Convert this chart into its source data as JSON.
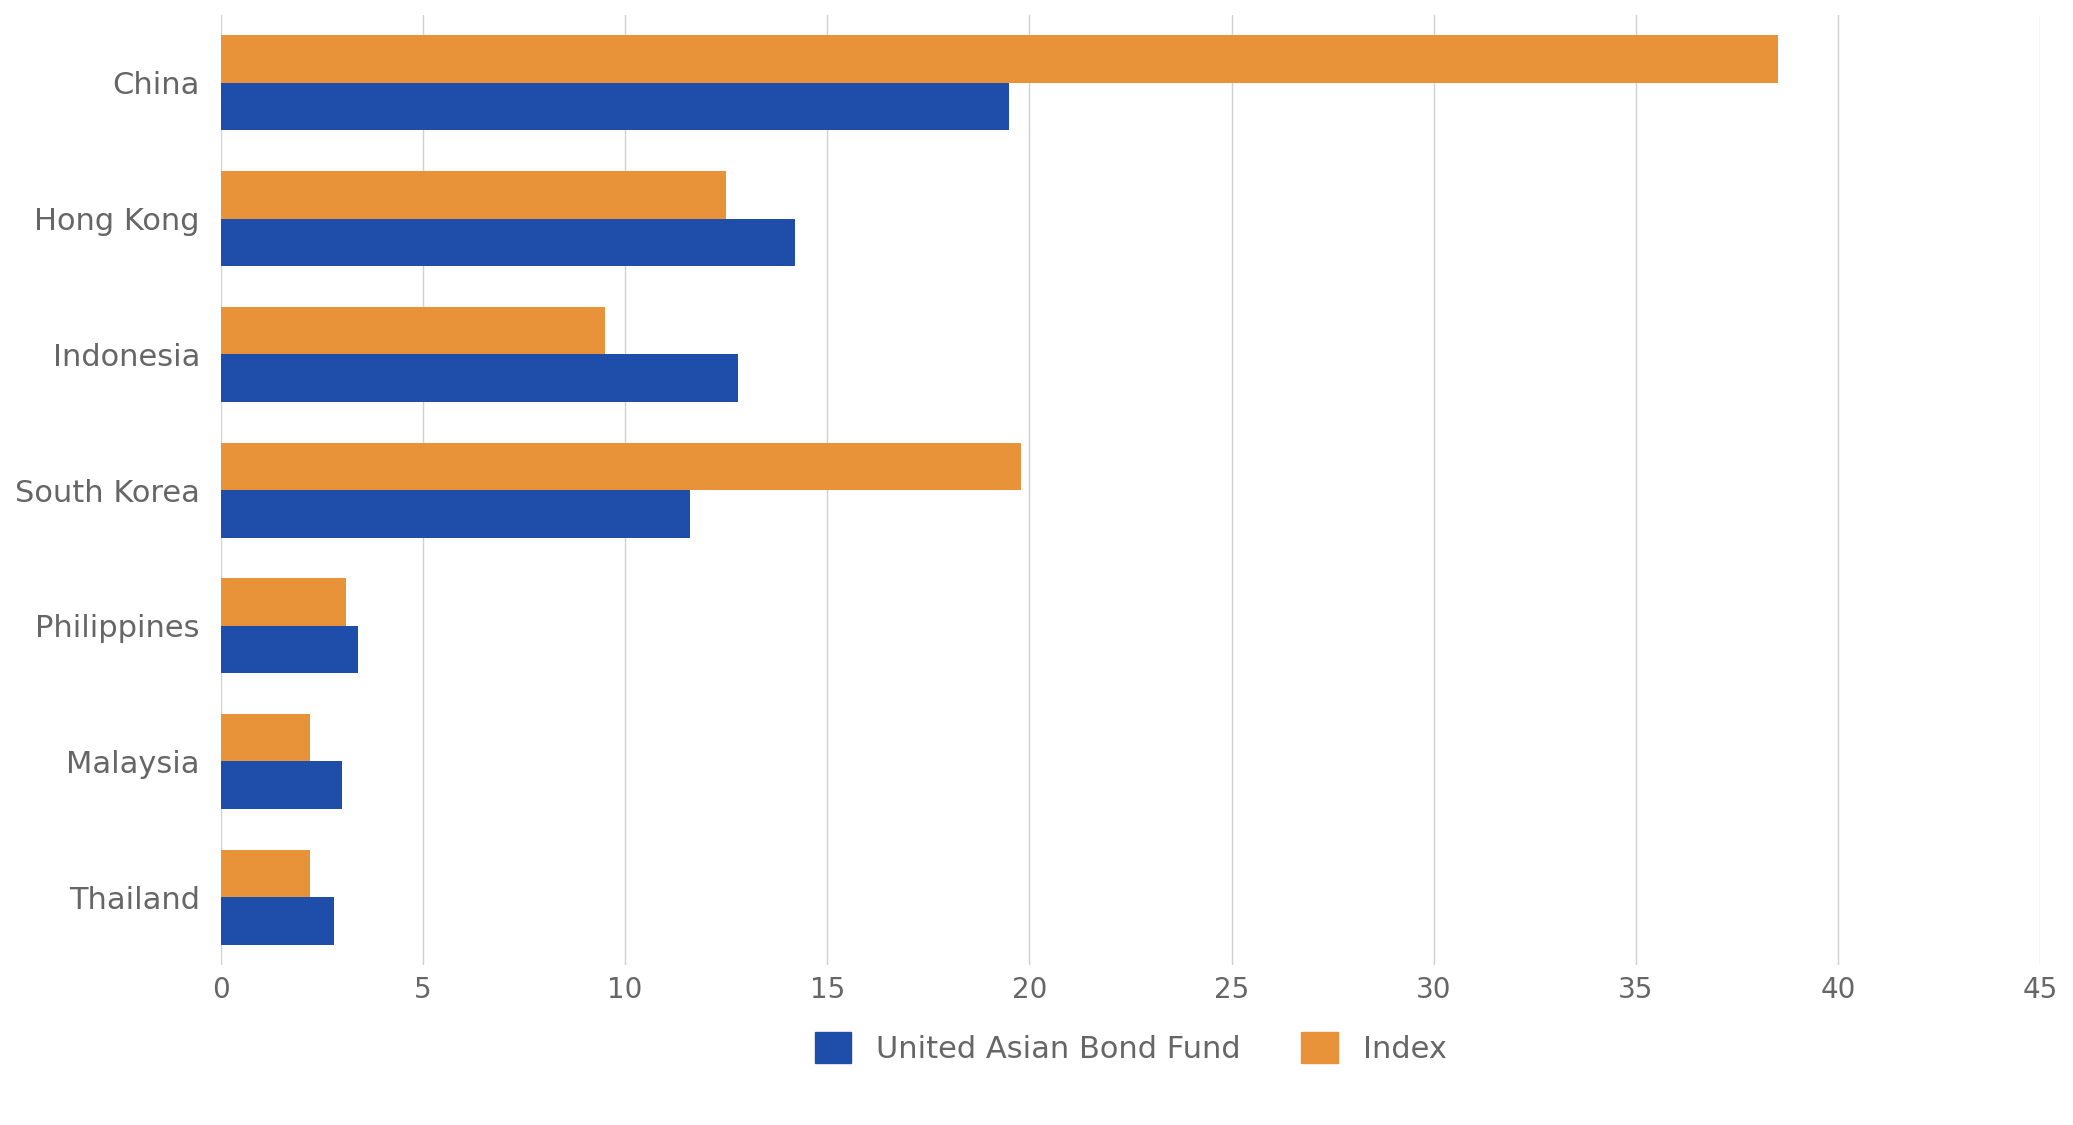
{
  "categories": [
    "China",
    "Hong Kong",
    "Indonesia",
    "South Korea",
    "Philippines",
    "Malaysia",
    "Thailand"
  ],
  "fund_values": [
    19.5,
    14.2,
    12.8,
    11.6,
    3.4,
    3.0,
    2.8
  ],
  "index_values": [
    38.5,
    12.5,
    9.5,
    19.8,
    3.1,
    2.2,
    2.2
  ],
  "fund_color": "#1f4eaa",
  "index_color": "#e8923a",
  "background_color": "#ffffff",
  "xlim": [
    0,
    45
  ],
  "xticks": [
    0,
    5,
    10,
    15,
    20,
    25,
    30,
    35,
    40,
    45
  ],
  "legend_labels": [
    "United Asian Bond Fund",
    "Index"
  ],
  "bar_height": 0.35,
  "grid_color": "#d0d0d0",
  "label_color": "#666666",
  "label_fontsize": 22,
  "tick_fontsize": 20
}
